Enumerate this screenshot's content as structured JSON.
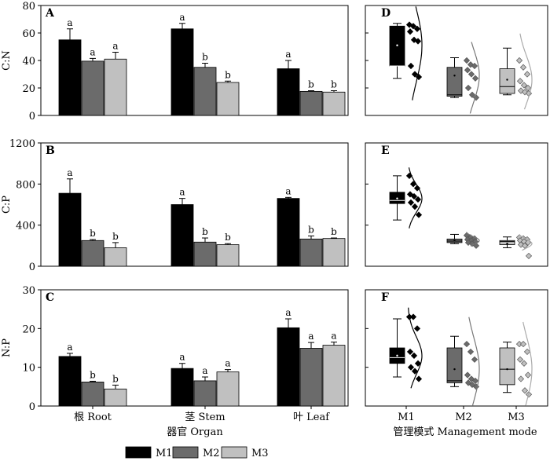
{
  "chart_data": [
    {
      "panel": "A",
      "type": "bar",
      "ylabel": "C:N",
      "ylim": [
        0,
        80
      ],
      "yticks": [
        0,
        20,
        40,
        60,
        80
      ],
      "categories": [
        "根 Root",
        "茎 Stem",
        "叶 Leaf"
      ],
      "series": [
        {
          "name": "M1",
          "values": [
            55,
            63,
            34
          ],
          "errors": [
            8,
            4,
            6
          ],
          "letters": [
            "a",
            "a",
            "a"
          ]
        },
        {
          "name": "M2",
          "values": [
            39.5,
            35,
            17.5
          ],
          "errors": [
            2,
            3,
            0.5
          ],
          "letters": [
            "a",
            "b",
            "b"
          ]
        },
        {
          "name": "M3",
          "values": [
            41,
            24,
            17
          ],
          "errors": [
            5,
            1,
            1
          ],
          "letters": [
            "a",
            "b",
            "b"
          ]
        }
      ]
    },
    {
      "panel": "B",
      "type": "bar",
      "ylabel": "C:P",
      "ylim": [
        0,
        1200
      ],
      "yticks": [
        0,
        400,
        800,
        1200
      ],
      "categories": [
        "根 Root",
        "茎 Stem",
        "叶 Leaf"
      ],
      "series": [
        {
          "name": "M1",
          "values": [
            710,
            600,
            660
          ],
          "errors": [
            140,
            60,
            10
          ],
          "letters": [
            "a",
            "a",
            "a"
          ]
        },
        {
          "name": "M2",
          "values": [
            250,
            235,
            265
          ],
          "errors": [
            10,
            40,
            30
          ],
          "letters": [
            "b",
            "b",
            "b"
          ]
        },
        {
          "name": "M3",
          "values": [
            180,
            210,
            270
          ],
          "errors": [
            50,
            10,
            5
          ],
          "letters": [
            "b",
            "b",
            "b"
          ]
        }
      ]
    },
    {
      "panel": "C",
      "type": "bar",
      "ylabel": "N:P",
      "ylim": [
        0,
        30
      ],
      "yticks": [
        0,
        10,
        20,
        30
      ],
      "categories": [
        "根 Root",
        "茎 Stem",
        "叶 Leaf"
      ],
      "series": [
        {
          "name": "M1",
          "values": [
            12.8,
            9.7,
            20.2
          ],
          "errors": [
            0.8,
            1.3,
            2.3
          ],
          "letters": [
            "a",
            "a",
            "a"
          ]
        },
        {
          "name": "M2",
          "values": [
            6.2,
            6.5,
            14.9
          ],
          "errors": [
            0.2,
            1.0,
            1.5
          ],
          "letters": [
            "b",
            "a",
            "a"
          ]
        },
        {
          "name": "M3",
          "values": [
            4.4,
            8.8,
            15.7
          ],
          "errors": [
            1.0,
            0.6,
            0.8
          ],
          "letters": [
            "b",
            "a",
            "a"
          ]
        }
      ]
    },
    {
      "panel": "D",
      "type": "box",
      "ylim": [
        0,
        80
      ],
      "refs": "A",
      "categories": [
        "M1",
        "M2",
        "M3"
      ],
      "boxes": [
        {
          "q1": 36,
          "median": 36,
          "q3": 65,
          "lo": 27,
          "hi": 67,
          "mean": 51
        },
        {
          "q1": 14,
          "median": 15,
          "q3": 35,
          "lo": 13,
          "hi": 42,
          "mean": 29
        },
        {
          "q1": 16,
          "median": 21,
          "q3": 34,
          "lo": 15,
          "hi": 49,
          "mean": 26
        }
      ],
      "points": [
        [
          66,
          65,
          63,
          61,
          55,
          54,
          36,
          30,
          28
        ],
        [
          40,
          37,
          36,
          33,
          30,
          27,
          20,
          15,
          13
        ],
        [
          40,
          35,
          30,
          25,
          22,
          20,
          18,
          17,
          16
        ]
      ]
    },
    {
      "panel": "E",
      "type": "box",
      "ylim": [
        0,
        1200
      ],
      "refs": "B",
      "categories": [
        "M1",
        "M2",
        "M3"
      ],
      "boxes": [
        {
          "q1": 610,
          "median": 640,
          "q3": 720,
          "lo": 450,
          "hi": 880,
          "mean": 660
        },
        {
          "q1": 230,
          "median": 245,
          "q3": 265,
          "lo": 220,
          "hi": 310,
          "mean": 250
        },
        {
          "q1": 210,
          "median": 240,
          "q3": 250,
          "lo": 180,
          "hi": 285,
          "mean": 220
        }
      ],
      "points": [
        [
          880,
          800,
          760,
          700,
          680,
          650,
          620,
          580,
          500
        ],
        [
          300,
          280,
          270,
          260,
          250,
          240,
          230,
          220,
          200
        ],
        [
          280,
          270,
          260,
          250,
          240,
          230,
          210,
          200,
          100
        ]
      ]
    },
    {
      "panel": "F",
      "type": "box",
      "ylim": [
        0,
        30
      ],
      "refs": "C",
      "categories": [
        "M1",
        "M2",
        "M3"
      ],
      "boxes": [
        {
          "q1": 11,
          "median": 12.5,
          "q3": 15,
          "lo": 7.5,
          "hi": 22.5,
          "mean": 13
        },
        {
          "q1": 6,
          "median": 6.5,
          "q3": 15,
          "lo": 5,
          "hi": 18,
          "mean": 9.5
        },
        {
          "q1": 5.5,
          "median": 9.5,
          "q3": 15,
          "lo": 3.5,
          "hi": 16.5,
          "mean": 9.5
        }
      ],
      "points": [
        [
          23,
          23,
          20,
          14,
          13,
          11,
          10,
          9,
          7
        ],
        [
          16,
          14,
          12,
          8,
          7,
          6.5,
          6,
          5.5,
          5
        ],
        [
          16,
          16,
          14,
          12,
          11,
          8,
          7,
          4,
          3
        ]
      ]
    }
  ],
  "legend": [
    {
      "name": "M1",
      "color": "#000000"
    },
    {
      "name": "M2",
      "color": "#6b6b6b"
    },
    {
      "name": "M3",
      "color": "#c0c0c0"
    }
  ],
  "xlabel_left": "器官 Organ",
  "xlabel_right": "管理模式 Management mode",
  "colors": {
    "M1": "#000000",
    "M2": "#6b6b6b",
    "M3": "#c0c0c0",
    "curve_M1": "#000000",
    "curve_M2": "#777777",
    "curve_M3": "#aaaaaa"
  }
}
